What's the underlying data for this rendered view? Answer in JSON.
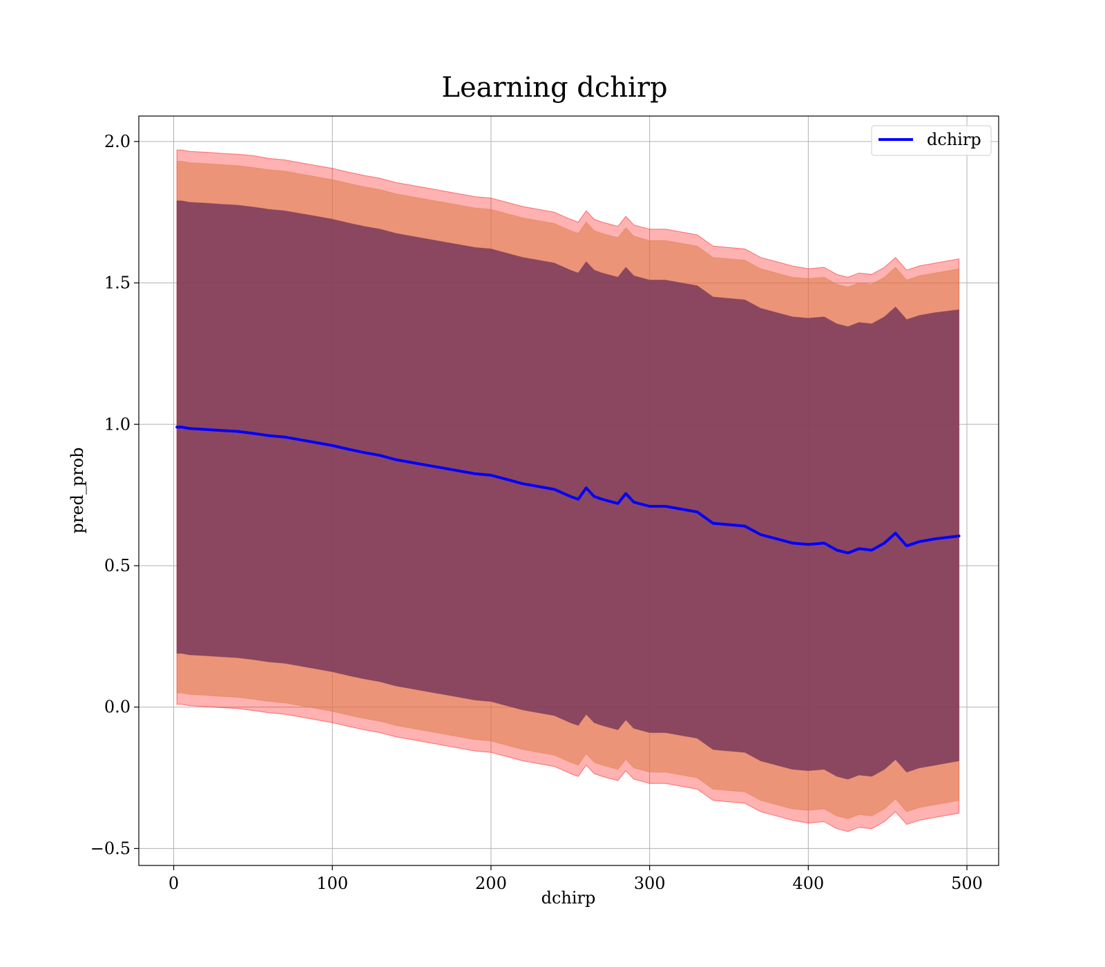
{
  "chart_data": {
    "type": "line",
    "title": "Learning dchirp",
    "xlabel": "dchirp",
    "ylabel": "pred_prob",
    "xlim": [
      -22,
      520
    ],
    "ylim": [
      -0.56,
      2.09
    ],
    "xticks": [
      0,
      100,
      200,
      300,
      400,
      500
    ],
    "xtick_labels": [
      "0",
      "100",
      "200",
      "300",
      "400",
      "500"
    ],
    "yticks": [
      -0.5,
      0.0,
      0.5,
      1.0,
      1.5,
      2.0
    ],
    "ytick_labels": [
      "−0.5",
      "0.0",
      "0.5",
      "1.0",
      "1.5",
      "2.0"
    ],
    "grid": true,
    "legend_position": "top-right",
    "colors": {
      "line": "#0000ff",
      "band_outer": "#ff0000",
      "band_middle": "#e08050",
      "band_inner": "#7a3a5a",
      "grid": "#b0b0b0"
    },
    "x": [
      2,
      5,
      10,
      20,
      30,
      40,
      50,
      60,
      70,
      80,
      90,
      100,
      110,
      120,
      130,
      140,
      150,
      160,
      170,
      180,
      190,
      200,
      210,
      220,
      230,
      240,
      250,
      255,
      260,
      265,
      270,
      280,
      285,
      290,
      300,
      310,
      320,
      330,
      340,
      350,
      360,
      370,
      380,
      390,
      400,
      410,
      418,
      425,
      432,
      440,
      448,
      455,
      462,
      470,
      480,
      495
    ],
    "series": [
      {
        "name": "dchirp",
        "values": [
          0.99,
          0.99,
          0.985,
          0.982,
          0.978,
          0.975,
          0.968,
          0.96,
          0.955,
          0.945,
          0.935,
          0.925,
          0.912,
          0.9,
          0.89,
          0.875,
          0.865,
          0.855,
          0.845,
          0.835,
          0.825,
          0.82,
          0.805,
          0.79,
          0.78,
          0.77,
          0.745,
          0.735,
          0.775,
          0.745,
          0.735,
          0.72,
          0.755,
          0.725,
          0.71,
          0.71,
          0.7,
          0.69,
          0.65,
          0.645,
          0.64,
          0.61,
          0.595,
          0.58,
          0.575,
          0.58,
          0.555,
          0.545,
          0.56,
          0.555,
          0.58,
          0.615,
          0.57,
          0.585,
          0.595,
          0.605
        ]
      }
    ],
    "bands": [
      {
        "upper": [
          1.97,
          1.97,
          1.965,
          1.962,
          1.958,
          1.955,
          1.95,
          1.94,
          1.935,
          1.925,
          1.915,
          1.905,
          1.892,
          1.88,
          1.87,
          1.855,
          1.845,
          1.835,
          1.825,
          1.815,
          1.805,
          1.8,
          1.785,
          1.77,
          1.76,
          1.75,
          1.725,
          1.715,
          1.755,
          1.725,
          1.715,
          1.7,
          1.735,
          1.705,
          1.69,
          1.69,
          1.68,
          1.67,
          1.63,
          1.625,
          1.62,
          1.59,
          1.575,
          1.56,
          1.55,
          1.555,
          1.53,
          1.52,
          1.535,
          1.53,
          1.555,
          1.59,
          1.545,
          1.56,
          1.57,
          1.585
        ],
        "lower": [
          0.01,
          0.01,
          0.005,
          0.002,
          -0.002,
          -0.005,
          -0.012,
          -0.02,
          -0.025,
          -0.035,
          -0.045,
          -0.055,
          -0.068,
          -0.08,
          -0.09,
          -0.105,
          -0.115,
          -0.125,
          -0.135,
          -0.145,
          -0.155,
          -0.16,
          -0.175,
          -0.19,
          -0.2,
          -0.21,
          -0.235,
          -0.245,
          -0.205,
          -0.235,
          -0.245,
          -0.26,
          -0.225,
          -0.255,
          -0.27,
          -0.27,
          -0.28,
          -0.29,
          -0.33,
          -0.335,
          -0.34,
          -0.37,
          -0.385,
          -0.4,
          -0.41,
          -0.405,
          -0.43,
          -0.44,
          -0.425,
          -0.43,
          -0.405,
          -0.37,
          -0.415,
          -0.4,
          -0.39,
          -0.375
        ]
      },
      {
        "upper": [
          1.93,
          1.93,
          1.925,
          1.922,
          1.918,
          1.915,
          1.908,
          1.9,
          1.895,
          1.885,
          1.875,
          1.865,
          1.852,
          1.84,
          1.83,
          1.815,
          1.805,
          1.795,
          1.785,
          1.775,
          1.765,
          1.76,
          1.745,
          1.73,
          1.72,
          1.71,
          1.685,
          1.675,
          1.715,
          1.685,
          1.675,
          1.66,
          1.695,
          1.665,
          1.65,
          1.65,
          1.64,
          1.63,
          1.59,
          1.585,
          1.58,
          1.55,
          1.535,
          1.52,
          1.515,
          1.52,
          1.495,
          1.485,
          1.5,
          1.495,
          1.52,
          1.555,
          1.51,
          1.525,
          1.535,
          1.55
        ],
        "lower": [
          0.05,
          0.05,
          0.045,
          0.042,
          0.038,
          0.035,
          0.028,
          0.02,
          0.015,
          0.005,
          -0.005,
          -0.015,
          -0.028,
          -0.04,
          -0.05,
          -0.065,
          -0.075,
          -0.085,
          -0.095,
          -0.105,
          -0.115,
          -0.12,
          -0.135,
          -0.15,
          -0.16,
          -0.17,
          -0.195,
          -0.205,
          -0.165,
          -0.195,
          -0.205,
          -0.22,
          -0.185,
          -0.215,
          -0.23,
          -0.23,
          -0.24,
          -0.25,
          -0.29,
          -0.295,
          -0.3,
          -0.33,
          -0.345,
          -0.36,
          -0.365,
          -0.36,
          -0.385,
          -0.395,
          -0.38,
          -0.385,
          -0.36,
          -0.325,
          -0.37,
          -0.355,
          -0.345,
          -0.33
        ]
      },
      {
        "upper": [
          1.79,
          1.79,
          1.785,
          1.782,
          1.778,
          1.775,
          1.768,
          1.76,
          1.755,
          1.745,
          1.735,
          1.725,
          1.712,
          1.7,
          1.69,
          1.675,
          1.665,
          1.655,
          1.645,
          1.635,
          1.625,
          1.62,
          1.605,
          1.59,
          1.58,
          1.57,
          1.545,
          1.535,
          1.575,
          1.545,
          1.535,
          1.52,
          1.555,
          1.525,
          1.51,
          1.51,
          1.5,
          1.49,
          1.45,
          1.445,
          1.44,
          1.41,
          1.395,
          1.38,
          1.375,
          1.38,
          1.355,
          1.345,
          1.36,
          1.355,
          1.38,
          1.415,
          1.37,
          1.385,
          1.395,
          1.405
        ],
        "lower": [
          0.19,
          0.19,
          0.185,
          0.182,
          0.178,
          0.175,
          0.168,
          0.16,
          0.155,
          0.145,
          0.135,
          0.125,
          0.112,
          0.1,
          0.09,
          0.075,
          0.065,
          0.055,
          0.045,
          0.035,
          0.025,
          0.02,
          0.005,
          -0.01,
          -0.02,
          -0.03,
          -0.055,
          -0.065,
          -0.025,
          -0.055,
          -0.065,
          -0.08,
          -0.045,
          -0.075,
          -0.09,
          -0.09,
          -0.1,
          -0.11,
          -0.15,
          -0.155,
          -0.16,
          -0.19,
          -0.205,
          -0.22,
          -0.225,
          -0.22,
          -0.245,
          -0.255,
          -0.24,
          -0.245,
          -0.22,
          -0.185,
          -0.23,
          -0.215,
          -0.205,
          -0.19
        ]
      }
    ]
  }
}
